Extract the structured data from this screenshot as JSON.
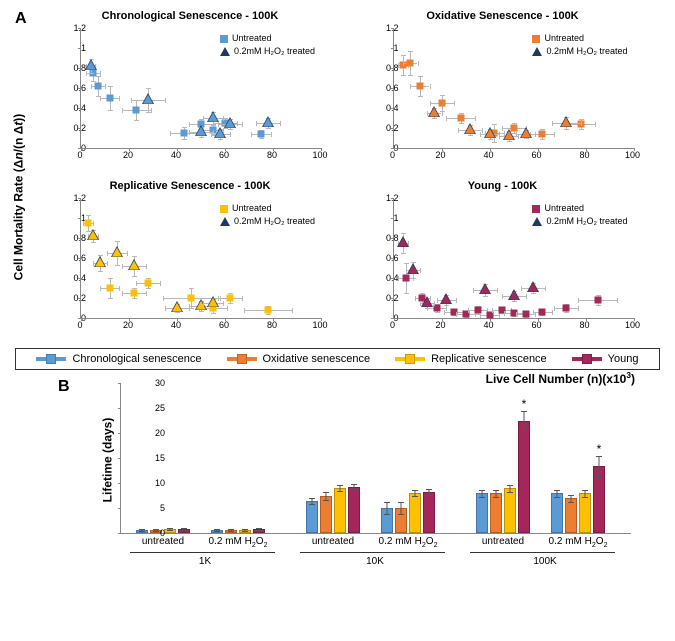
{
  "panelA_label": "A",
  "panelB_label": "B",
  "yaxis_label_A": "Cell Mortality Rate (Δn/(n Δt))",
  "xaxis_label_A": "Live Cell Number (n)(x10³)",
  "yaxis_label_B": "Lifetime (days)",
  "colors": {
    "chronological": "#5b9bd5",
    "oxidative": "#ed7d31",
    "replicative": "#ffc000",
    "young": "#a5275a",
    "triangle_border": "#1f3864",
    "errorbar": "#b8b8b8",
    "axis": "#888888"
  },
  "scatter_common": {
    "xlim": [
      0,
      100
    ],
    "ylim": [
      0,
      1.2
    ],
    "xticks": [
      0,
      20,
      40,
      60,
      80,
      100
    ],
    "yticks": [
      0,
      0.2,
      0.4,
      0.6,
      0.8,
      1,
      1.2
    ],
    "legend_untreated": "Untreated",
    "legend_treated": "0.2mM H₂O₂ treated"
  },
  "scatter": [
    {
      "title": "Chronological Senescence - 100K",
      "color": "#5b9bd5",
      "untreated": [
        {
          "x": 5,
          "y": 0.75,
          "ex": 3,
          "ey": 0.08
        },
        {
          "x": 7,
          "y": 0.62,
          "ex": 3,
          "ey": 0.1
        },
        {
          "x": 12,
          "y": 0.5,
          "ex": 4,
          "ey": 0.12
        },
        {
          "x": 23,
          "y": 0.38,
          "ex": 6,
          "ey": 0.1
        },
        {
          "x": 43,
          "y": 0.15,
          "ex": 6,
          "ey": 0.06
        },
        {
          "x": 50,
          "y": 0.24,
          "ex": 5,
          "ey": 0.05
        },
        {
          "x": 55,
          "y": 0.18,
          "ex": 4,
          "ey": 0.05
        },
        {
          "x": 60,
          "y": 0.25,
          "ex": 5,
          "ey": 0.05
        },
        {
          "x": 75,
          "y": 0.14,
          "ex": 4,
          "ey": 0.04
        }
      ],
      "treated": [
        {
          "x": 4,
          "y": 0.82,
          "ex": 2,
          "ey": 0.07
        },
        {
          "x": 28,
          "y": 0.48,
          "ex": 7,
          "ey": 0.12
        },
        {
          "x": 50,
          "y": 0.16,
          "ex": 5,
          "ey": 0.05
        },
        {
          "x": 55,
          "y": 0.3,
          "ex": 4,
          "ey": 0.06
        },
        {
          "x": 58,
          "y": 0.14,
          "ex": 4,
          "ey": 0.05
        },
        {
          "x": 62,
          "y": 0.24,
          "ex": 5,
          "ey": 0.05
        },
        {
          "x": 78,
          "y": 0.25,
          "ex": 5,
          "ey": 0.05
        }
      ]
    },
    {
      "title": "Oxidative Senescence - 100K",
      "color": "#ed7d31",
      "untreated": [
        {
          "x": 4,
          "y": 0.83,
          "ex": 2,
          "ey": 0.1
        },
        {
          "x": 7,
          "y": 0.85,
          "ex": 3,
          "ey": 0.12
        },
        {
          "x": 11,
          "y": 0.62,
          "ex": 4,
          "ey": 0.1
        },
        {
          "x": 20,
          "y": 0.45,
          "ex": 5,
          "ey": 0.08
        },
        {
          "x": 28,
          "y": 0.3,
          "ex": 6,
          "ey": 0.05
        },
        {
          "x": 42,
          "y": 0.15,
          "ex": 4,
          "ey": 0.09
        },
        {
          "x": 50,
          "y": 0.2,
          "ex": 5,
          "ey": 0.05
        },
        {
          "x": 62,
          "y": 0.14,
          "ex": 5,
          "ey": 0.05
        },
        {
          "x": 78,
          "y": 0.24,
          "ex": 6,
          "ey": 0.05
        }
      ],
      "treated": [
        {
          "x": 17,
          "y": 0.35,
          "ex": 3,
          "ey": 0.05
        },
        {
          "x": 32,
          "y": 0.18,
          "ex": 5,
          "ey": 0.05
        },
        {
          "x": 40,
          "y": 0.14,
          "ex": 4,
          "ey": 0.05
        },
        {
          "x": 48,
          "y": 0.12,
          "ex": 4,
          "ey": 0.05
        },
        {
          "x": 55,
          "y": 0.14,
          "ex": 4,
          "ey": 0.04
        },
        {
          "x": 72,
          "y": 0.25,
          "ex": 6,
          "ey": 0.06
        }
      ]
    },
    {
      "title": "Replicative Senescence - 100K",
      "color": "#ffc000",
      "untreated": [
        {
          "x": 3,
          "y": 0.95,
          "ex": 2,
          "ey": 0.08
        },
        {
          "x": 12,
          "y": 0.3,
          "ex": 4,
          "ey": 0.1
        },
        {
          "x": 22,
          "y": 0.25,
          "ex": 5,
          "ey": 0.05
        },
        {
          "x": 28,
          "y": 0.35,
          "ex": 5,
          "ey": 0.05
        },
        {
          "x": 46,
          "y": 0.2,
          "ex": 12,
          "ey": 0.1
        },
        {
          "x": 55,
          "y": 0.1,
          "ex": 6,
          "ey": 0.05
        },
        {
          "x": 62,
          "y": 0.2,
          "ex": 5,
          "ey": 0.05
        },
        {
          "x": 78,
          "y": 0.08,
          "ex": 10,
          "ey": 0.04
        }
      ],
      "treated": [
        {
          "x": 5,
          "y": 0.82,
          "ex": 2,
          "ey": 0.06
        },
        {
          "x": 8,
          "y": 0.55,
          "ex": 3,
          "ey": 0.08
        },
        {
          "x": 15,
          "y": 0.65,
          "ex": 4,
          "ey": 0.12
        },
        {
          "x": 22,
          "y": 0.52,
          "ex": 5,
          "ey": 0.1
        },
        {
          "x": 40,
          "y": 0.1,
          "ex": 5,
          "ey": 0.04
        },
        {
          "x": 50,
          "y": 0.12,
          "ex": 5,
          "ey": 0.05
        },
        {
          "x": 55,
          "y": 0.15,
          "ex": 4,
          "ey": 0.04
        }
      ]
    },
    {
      "title": "Young - 100K",
      "color": "#a5275a",
      "untreated": [
        {
          "x": 5,
          "y": 0.4,
          "ex": 3,
          "ey": 0.15
        },
        {
          "x": 12,
          "y": 0.2,
          "ex": 3,
          "ey": 0.05
        },
        {
          "x": 18,
          "y": 0.1,
          "ex": 4,
          "ey": 0.04
        },
        {
          "x": 25,
          "y": 0.06,
          "ex": 4,
          "ey": 0.03
        },
        {
          "x": 30,
          "y": 0.04,
          "ex": 4,
          "ey": 0.03
        },
        {
          "x": 35,
          "y": 0.08,
          "ex": 4,
          "ey": 0.04
        },
        {
          "x": 40,
          "y": 0.03,
          "ex": 4,
          "ey": 0.02
        },
        {
          "x": 45,
          "y": 0.08,
          "ex": 4,
          "ey": 0.03
        },
        {
          "x": 50,
          "y": 0.05,
          "ex": 4,
          "ey": 0.03
        },
        {
          "x": 55,
          "y": 0.04,
          "ex": 4,
          "ey": 0.03
        },
        {
          "x": 62,
          "y": 0.06,
          "ex": 4,
          "ey": 0.03
        },
        {
          "x": 72,
          "y": 0.1,
          "ex": 5,
          "ey": 0.04
        },
        {
          "x": 85,
          "y": 0.18,
          "ex": 8,
          "ey": 0.05
        }
      ],
      "treated": [
        {
          "x": 4,
          "y": 0.75,
          "ex": 2,
          "ey": 0.1
        },
        {
          "x": 8,
          "y": 0.48,
          "ex": 3,
          "ey": 0.08
        },
        {
          "x": 14,
          "y": 0.15,
          "ex": 3,
          "ey": 0.05
        },
        {
          "x": 22,
          "y": 0.18,
          "ex": 4,
          "ey": 0.05
        },
        {
          "x": 38,
          "y": 0.28,
          "ex": 5,
          "ey": 0.06
        },
        {
          "x": 50,
          "y": 0.22,
          "ex": 5,
          "ey": 0.05
        },
        {
          "x": 58,
          "y": 0.3,
          "ex": 5,
          "ey": 0.05
        }
      ]
    }
  ],
  "legend_strip": {
    "items": [
      {
        "label": "Chronological senescence",
        "color": "#5b9bd5"
      },
      {
        "label": "Oxidative senescence",
        "color": "#ed7d31"
      },
      {
        "label": "Replicative senescence",
        "color": "#ffc000"
      },
      {
        "label": "Young",
        "color": "#a5275a"
      }
    ]
  },
  "bar_chart": {
    "ylim": [
      0,
      30
    ],
    "yticks": [
      0,
      5,
      10,
      15,
      20,
      25,
      30
    ],
    "size_groups": [
      "1K",
      "10K",
      "100K"
    ],
    "treat_labels": [
      "untreated",
      "0.2 mM H₂O₂"
    ],
    "series_colors": [
      "#5b9bd5",
      "#ed7d31",
      "#ffc000",
      "#a5275a"
    ],
    "data": [
      [
        [
          0.7,
          0.7,
          0.8,
          0.9
        ],
        [
          0.6,
          0.6,
          0.7,
          0.8
        ]
      ],
      [
        [
          6.5,
          7.5,
          9,
          9.2
        ],
        [
          5,
          5,
          8,
          8.2
        ]
      ],
      [
        [
          8,
          8,
          9,
          22.5
        ],
        [
          8,
          7,
          8,
          13.5
        ]
      ]
    ],
    "errors": [
      [
        [
          0.2,
          0.2,
          0.2,
          0.2
        ],
        [
          0.2,
          0.2,
          0.2,
          0.2
        ]
      ],
      [
        [
          0.6,
          0.8,
          0.6,
          0.6
        ],
        [
          1.2,
          1.2,
          0.6,
          0.6
        ]
      ],
      [
        [
          0.7,
          0.7,
          0.7,
          2
        ],
        [
          0.7,
          0.7,
          0.7,
          2
        ]
      ]
    ],
    "stars": [
      {
        "group": 2,
        "treat": 0,
        "series": 3,
        "label": "*"
      },
      {
        "group": 2,
        "treat": 1,
        "series": 3,
        "label": "*"
      }
    ]
  }
}
